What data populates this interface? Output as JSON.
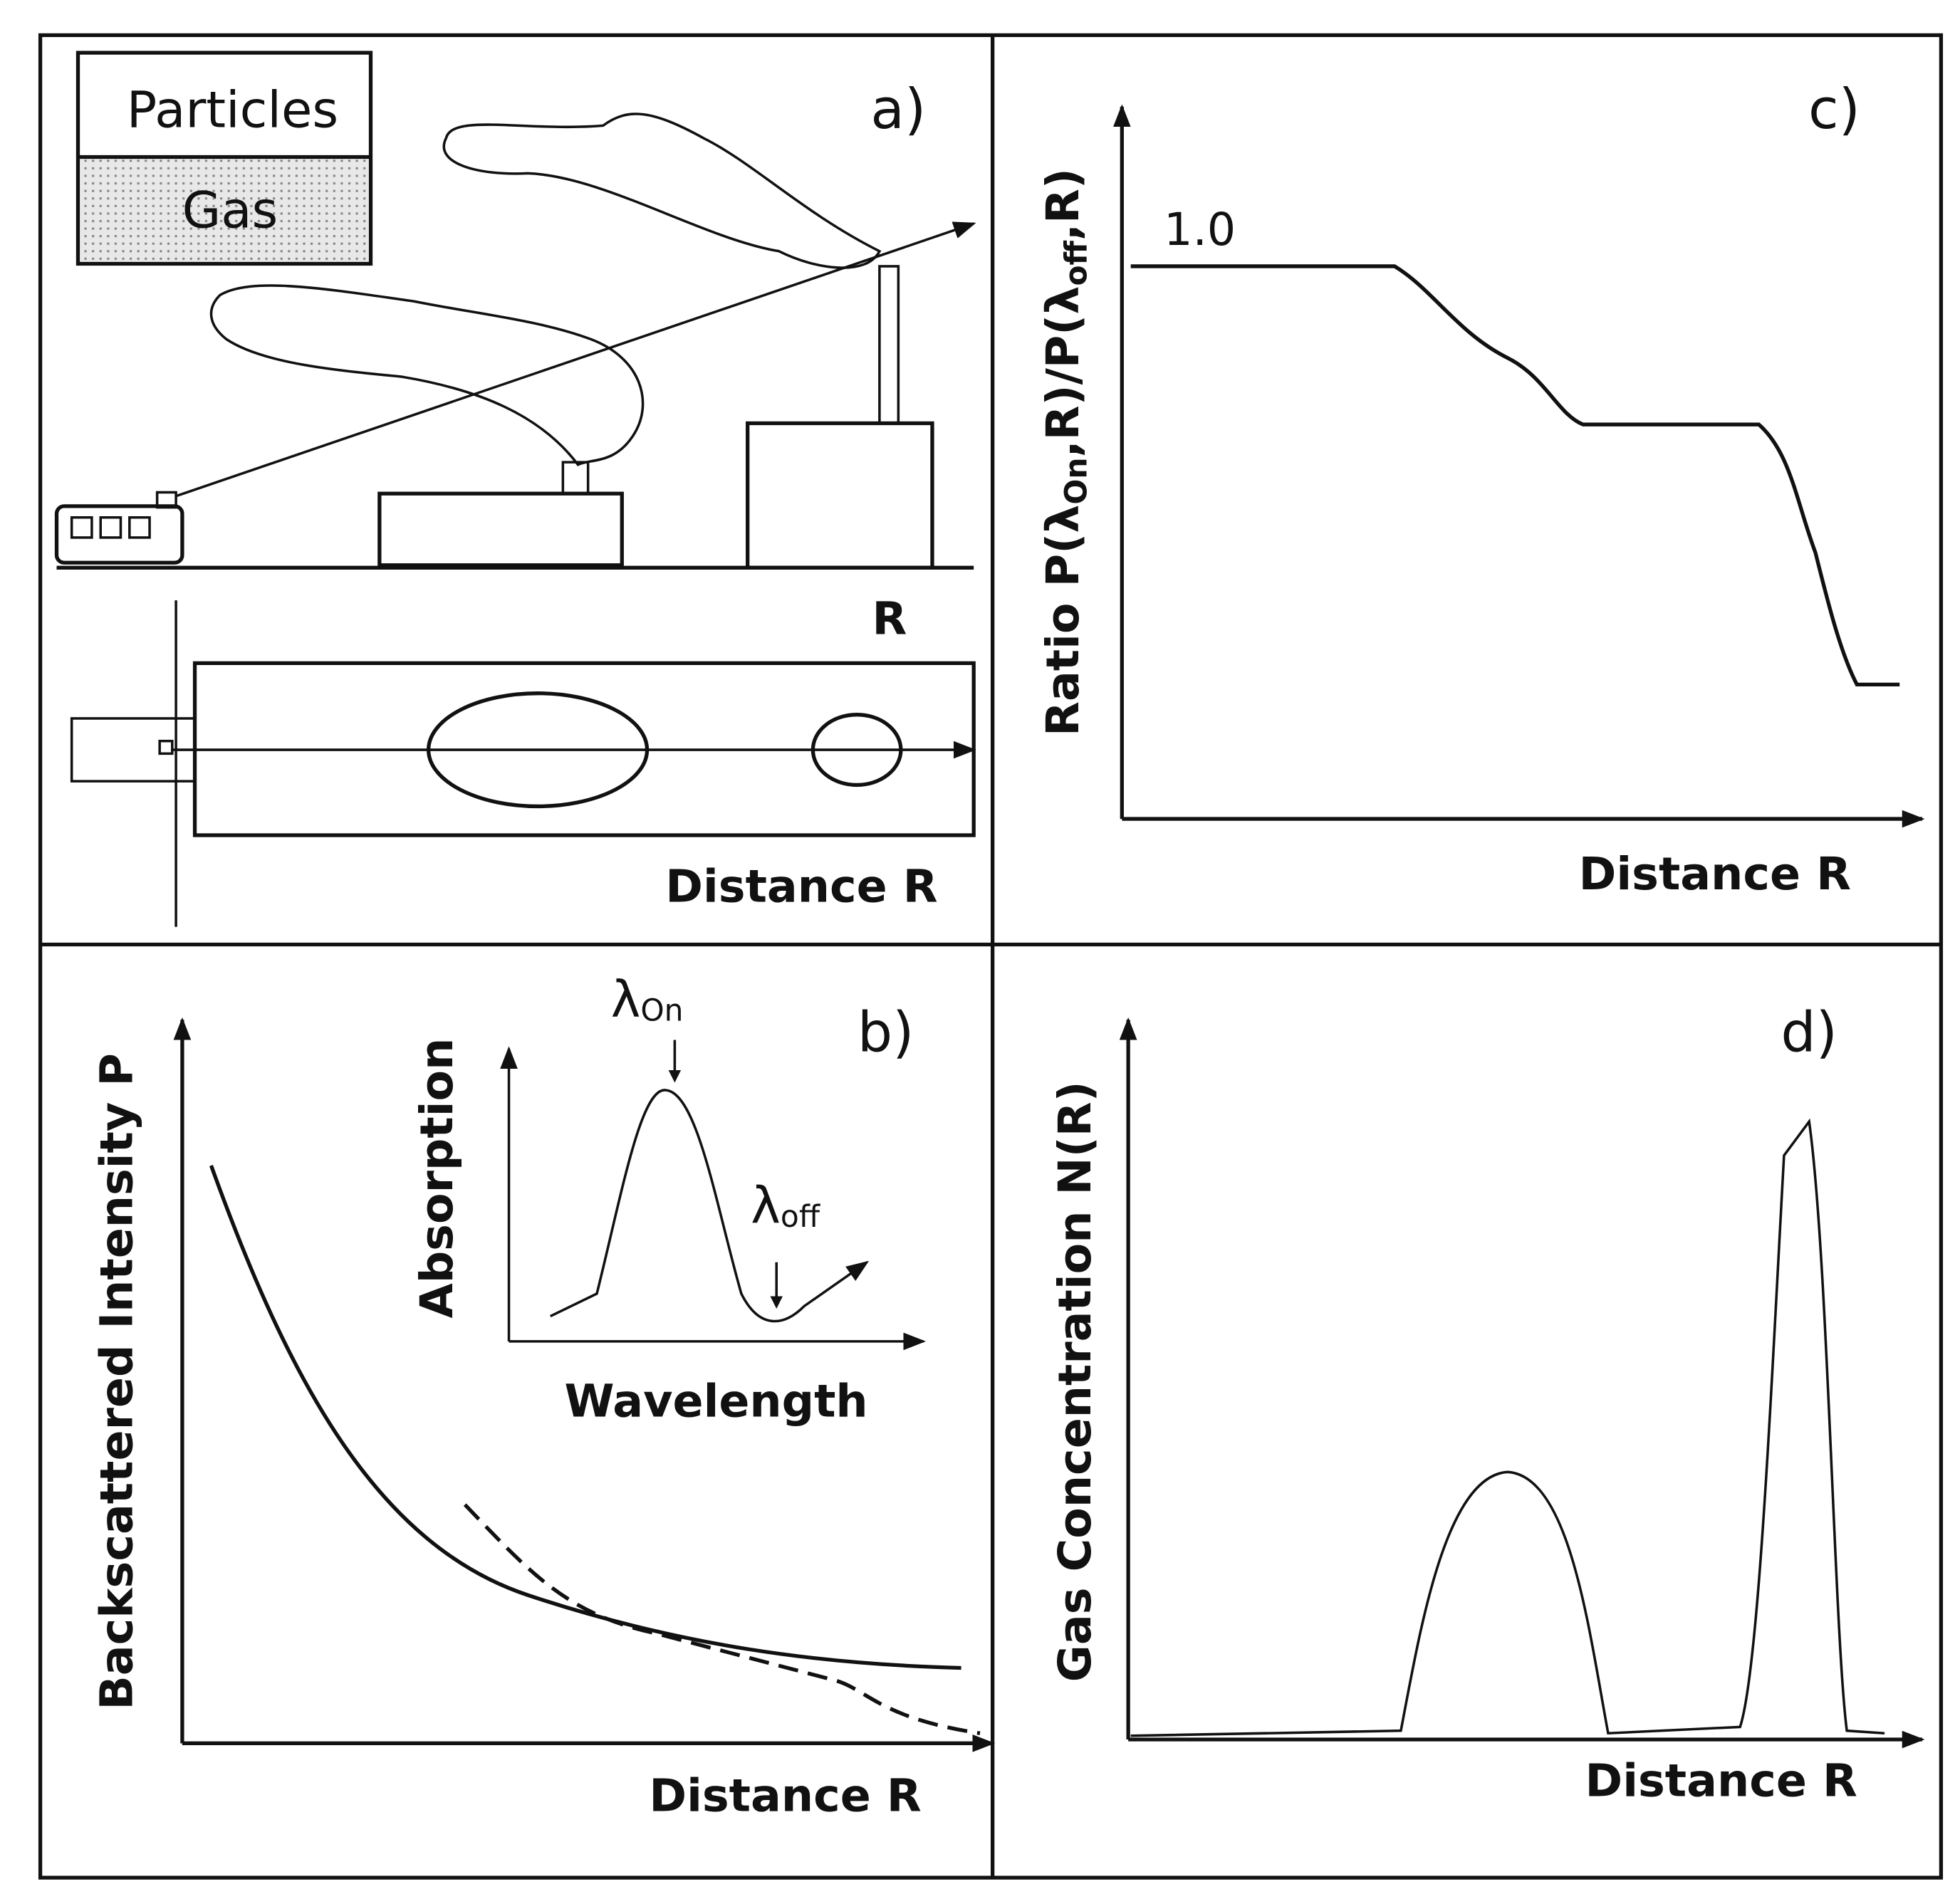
{
  "panel_a": {
    "label": "a)",
    "legend": [
      "Particles",
      "Gas"
    ],
    "range_label": "R",
    "x_label": "Distance R"
  },
  "panel_b": {
    "label": "b)",
    "y_label": "Backscattered Intensity P",
    "x_label": "Distance R",
    "inset": {
      "y_label": "Absorption",
      "x_label": "Wavelength",
      "on_symbol": "λ",
      "on_sub": "On",
      "off_symbol": "λ",
      "off_sub": "off"
    }
  },
  "panel_c": {
    "label": "c)",
    "y_label_parts": [
      "Ratio P(λ",
      "On",
      ",R)/P(λ",
      "off",
      ",R)"
    ],
    "level_label": "1.0",
    "x_label": "Distance R"
  },
  "panel_d": {
    "label": "d)",
    "y_label": "Gas Concentration N(R)",
    "x_label": "Distance R"
  }
}
